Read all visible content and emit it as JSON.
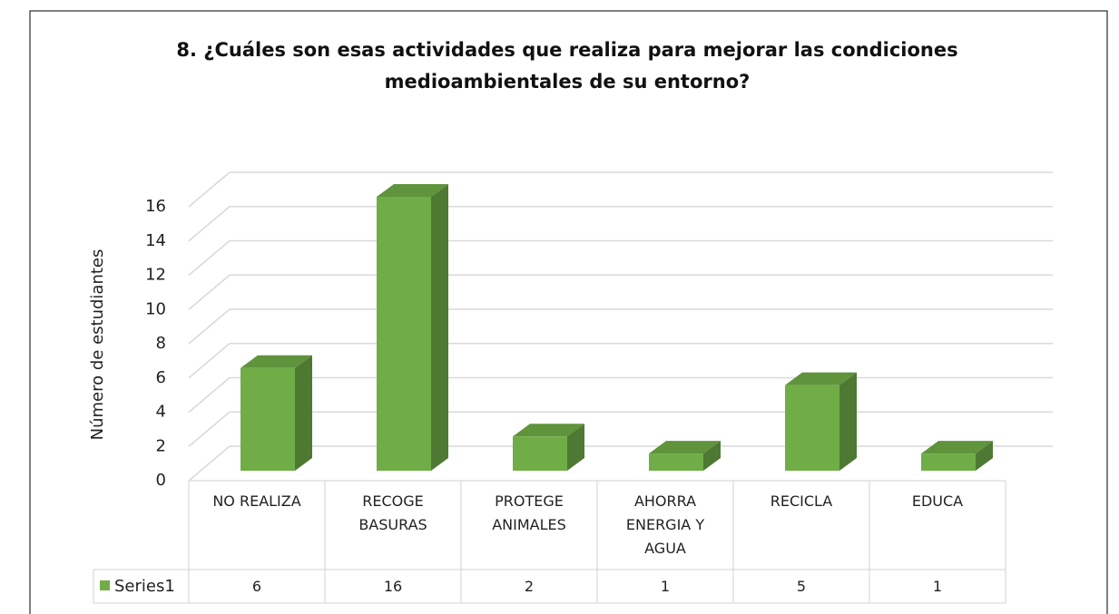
{
  "chart_data": {
    "type": "bar3d",
    "title": "8. ¿Cuáles son esas actividades que realiza para mejorar las condiciones medioambientales de su entorno?",
    "y_label": "Número de estudiantes",
    "categories": [
      "NO REALIZA",
      "RECOGE BASURAS",
      "PROTEGE ANIMALES",
      "AHORRA ENERGIA Y AGUA",
      "RECICLA",
      "EDUCA"
    ],
    "series": [
      {
        "name": "Series1",
        "color": "#70ad47",
        "values": [
          6,
          16,
          2,
          1,
          5,
          1
        ]
      }
    ],
    "ylim": [
      0,
      16
    ],
    "yticks": [
      0,
      2,
      4,
      6,
      8,
      10,
      12,
      14,
      16
    ],
    "grid": true,
    "legend": "table"
  }
}
